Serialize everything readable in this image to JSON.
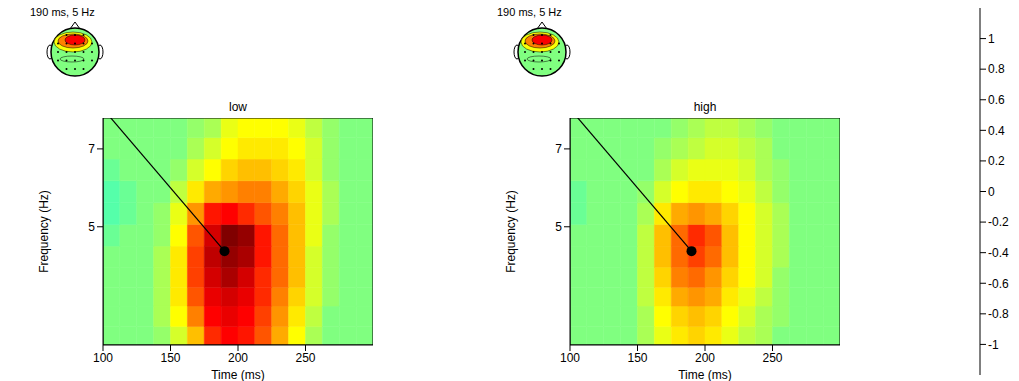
{
  "chart_data": {
    "type": "heatmap",
    "xlabel": "Time (ms)",
    "ylabel": "Frequency (Hz)",
    "xlim": [
      100,
      300
    ],
    "xticks": [
      100,
      150,
      200,
      250
    ],
    "ylim": [
      3,
      8
    ],
    "yticks": [
      5,
      7
    ],
    "log": "y",
    "x": [
      106,
      119,
      131,
      144,
      156,
      169,
      181,
      194,
      206,
      219,
      231,
      244,
      256,
      269,
      281,
      294
    ],
    "y": [
      3.1,
      3.4,
      3.7,
      4.0,
      4.4,
      4.8,
      5.3,
      5.8,
      6.4,
      7.0,
      7.7
    ],
    "colorbar": {
      "range": [
        -1.2,
        1.2
      ],
      "ticks": [
        -1,
        -0.8,
        -0.6,
        -0.4,
        -0.2,
        0,
        0.2,
        0.4,
        0.6,
        0.8,
        1
      ]
    },
    "panels": [
      {
        "title": "low",
        "annotation": {
          "text": "190 ms, 5 Hz",
          "x": 190,
          "y": 4.5
        },
        "values": [
          [
            0,
            0,
            0,
            0.05,
            0.2,
            0.45,
            0.8,
            0.9,
            0.85,
            0.7,
            0.5,
            0.3,
            0.1,
            0,
            0,
            0
          ],
          [
            0,
            0,
            0,
            0.1,
            0.3,
            0.6,
            0.9,
            0.95,
            0.9,
            0.75,
            0.55,
            0.35,
            0.15,
            0,
            0,
            0
          ],
          [
            0,
            0,
            0,
            0.1,
            0.35,
            0.7,
            0.95,
            1.0,
            0.95,
            0.8,
            0.6,
            0.4,
            0.2,
            0.05,
            0,
            0
          ],
          [
            0,
            0,
            0,
            0.1,
            0.35,
            0.75,
            1.0,
            1.1,
            1.0,
            0.8,
            0.65,
            0.45,
            0.2,
            0.05,
            0,
            0
          ],
          [
            0,
            0,
            0,
            0.1,
            0.35,
            0.75,
            1.05,
            1.15,
            1.1,
            0.85,
            0.65,
            0.45,
            0.2,
            0.05,
            0,
            0
          ],
          [
            -0.05,
            0,
            0,
            0.05,
            0.3,
            0.7,
            1.0,
            1.2,
            1.15,
            0.85,
            0.65,
            0.45,
            0.25,
            0.05,
            0,
            0
          ],
          [
            -0.1,
            -0.05,
            0,
            0.05,
            0.25,
            0.55,
            0.85,
            0.9,
            0.8,
            0.7,
            0.6,
            0.45,
            0.25,
            0.1,
            0,
            0
          ],
          [
            -0.1,
            -0.05,
            0,
            0,
            0.15,
            0.35,
            0.5,
            0.55,
            0.6,
            0.6,
            0.5,
            0.4,
            0.25,
            0.1,
            0,
            0
          ],
          [
            -0.05,
            0,
            0,
            0,
            0.05,
            0.2,
            0.3,
            0.4,
            0.45,
            0.45,
            0.4,
            0.35,
            0.2,
            0.05,
            0,
            0
          ],
          [
            0,
            0,
            0,
            0,
            0,
            0.1,
            0.2,
            0.3,
            0.35,
            0.35,
            0.35,
            0.3,
            0.2,
            0.05,
            0,
            0
          ],
          [
            0,
            0,
            0,
            0,
            0,
            0.05,
            0.1,
            0.25,
            0.3,
            0.3,
            0.3,
            0.25,
            0.15,
            0.05,
            0,
            0
          ]
        ]
      },
      {
        "title": "high",
        "annotation": {
          "text": "190 ms, 5 Hz",
          "x": 190,
          "y": 4.5
        },
        "values": [
          [
            0,
            0,
            0,
            0,
            0.1,
            0.25,
            0.35,
            0.4,
            0.35,
            0.25,
            0.15,
            0.1,
            0,
            0,
            0,
            0
          ],
          [
            0,
            0,
            0,
            0,
            0.1,
            0.3,
            0.4,
            0.45,
            0.4,
            0.3,
            0.2,
            0.1,
            0.05,
            0,
            0,
            0
          ],
          [
            0,
            0,
            0,
            0,
            0.15,
            0.35,
            0.5,
            0.55,
            0.5,
            0.35,
            0.25,
            0.15,
            0.05,
            0,
            0,
            0
          ],
          [
            0,
            0,
            0,
            0,
            0.15,
            0.4,
            0.6,
            0.65,
            0.55,
            0.4,
            0.3,
            0.2,
            0.05,
            0,
            0,
            0
          ],
          [
            0,
            0,
            0,
            0,
            0.15,
            0.45,
            0.65,
            0.75,
            0.65,
            0.45,
            0.3,
            0.2,
            0.1,
            0,
            0,
            0
          ],
          [
            0,
            0,
            0,
            0,
            0.15,
            0.45,
            0.65,
            0.8,
            0.7,
            0.45,
            0.3,
            0.2,
            0.1,
            0,
            0,
            0
          ],
          [
            -0.05,
            0,
            0,
            0,
            0.1,
            0.35,
            0.5,
            0.55,
            0.5,
            0.4,
            0.3,
            0.2,
            0.1,
            0,
            0,
            0
          ],
          [
            -0.05,
            0,
            0,
            0,
            0.05,
            0.2,
            0.3,
            0.35,
            0.35,
            0.3,
            0.25,
            0.15,
            0.05,
            0,
            0,
            0
          ],
          [
            0,
            0,
            0,
            0,
            0,
            0.1,
            0.2,
            0.25,
            0.25,
            0.25,
            0.2,
            0.1,
            0.05,
            0,
            0,
            0
          ],
          [
            0,
            0,
            0,
            0,
            0,
            0.05,
            0.1,
            0.15,
            0.2,
            0.2,
            0.15,
            0.1,
            0,
            0,
            0,
            0
          ],
          [
            0,
            0,
            0,
            0,
            0,
            0,
            0.05,
            0.1,
            0.15,
            0.15,
            0.1,
            0.05,
            0,
            0,
            0,
            0
          ]
        ]
      }
    ]
  }
}
